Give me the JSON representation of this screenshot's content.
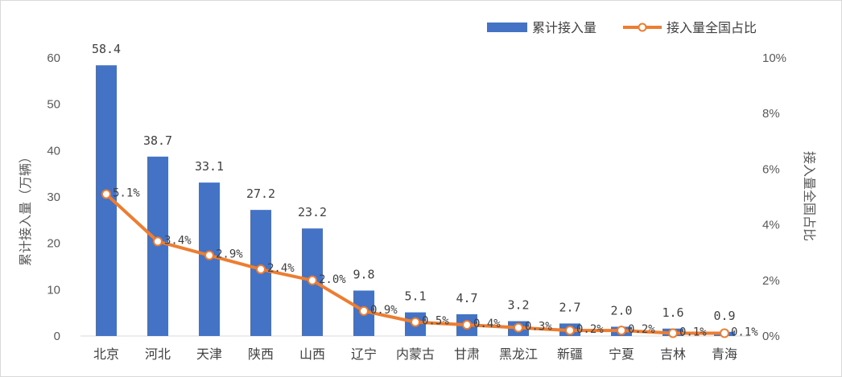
{
  "chart_data": {
    "type": "bar",
    "categories": [
      "北京",
      "河北",
      "天津",
      "陕西",
      "山西",
      "辽宁",
      "内蒙古",
      "甘肃",
      "黑龙江",
      "新疆",
      "宁夏",
      "吉林",
      "青海"
    ],
    "series": [
      {
        "name": "累计接入量",
        "type": "bar",
        "axis": "left",
        "values": [
          58.4,
          38.7,
          33.1,
          27.2,
          23.2,
          9.8,
          5.1,
          4.7,
          3.2,
          2.7,
          2.0,
          1.6,
          0.9
        ],
        "labels": [
          "58.4",
          "38.7",
          "33.1",
          "27.2",
          "23.2",
          "9.8",
          "5.1",
          "4.7",
          "3.2",
          "2.7",
          "2.0",
          "1.6",
          "0.9"
        ],
        "color": "#4472c4"
      },
      {
        "name": "接入量全国占比",
        "type": "line",
        "axis": "right",
        "values": [
          5.1,
          3.4,
          2.9,
          2.4,
          2.0,
          0.9,
          0.5,
          0.4,
          0.3,
          0.2,
          0.2,
          0.1,
          0.1
        ],
        "labels": [
          "5.1%",
          "3.4%",
          "2.9%",
          "2.4%",
          "2.0%",
          "0.9%",
          "0.5%",
          "0.4%",
          "0.3%",
          "0.2%",
          "0.2%",
          "0.1%",
          "0.1%"
        ],
        "color": "#ed7d31"
      }
    ],
    "ylabel": "累计接入量（万辆）",
    "y2label": "接入量全国占比",
    "ylim": [
      0,
      60
    ],
    "y2lim": [
      0,
      10
    ],
    "yticks": [
      "0",
      "10",
      "20",
      "30",
      "40",
      "50",
      "60"
    ],
    "y2ticks": [
      "0%",
      "2%",
      "4%",
      "6%",
      "8%",
      "10%"
    ],
    "legend_position": "top-right",
    "grid": false
  }
}
